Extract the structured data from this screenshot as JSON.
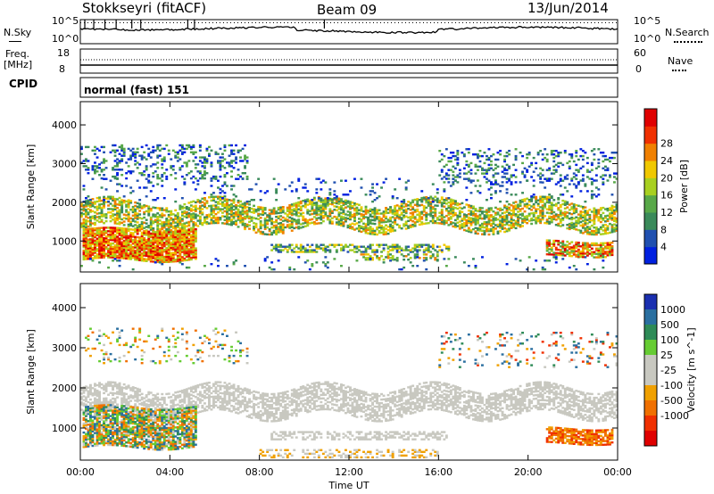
{
  "header": {
    "station": "Stokkseyri (fitACF)",
    "beam": "Beam 09",
    "date": "13/Jun/2014"
  },
  "top_panels": {
    "nsky_label": "N.Sky",
    "nsearch_label": "N.Search",
    "nsky_ticks": [
      "10^5",
      "10^0"
    ],
    "nsearch_ticks": [
      "10^5",
      "10^0"
    ],
    "freq_label": "Freq.",
    "freq_unit": "[MHz]",
    "freq_ticks": [
      "18",
      "8"
    ],
    "nave_label": "Nave",
    "nave_ticks": [
      "60",
      "0"
    ],
    "cpid_label": "CPID",
    "cpid_value": "normal (fast) 151"
  },
  "colors": {
    "power_scale": [
      "#0020e0",
      "#2050b0",
      "#3a8a5a",
      "#58a848",
      "#a8d020",
      "#f0c800",
      "#f08000",
      "#f03000",
      "#e00000"
    ],
    "velocity_scale": [
      "#1a2fb0",
      "#2a6fa0",
      "#2e8b57",
      "#66cc33",
      "#c8c8c0",
      "#c8c8c0",
      "#f0a000",
      "#f07000",
      "#f03000",
      "#e00000"
    ]
  },
  "chart_data": [
    {
      "type": "heatmap",
      "panel": "power",
      "ylabel": "Slant Range [km]",
      "yticks": [
        "1000",
        "2000",
        "3000",
        "4000"
      ],
      "ylim": [
        200,
        4600
      ],
      "xlim": [
        "00:00",
        "24:00"
      ],
      "colorbar_label": "Power [dB]",
      "colorbar_ticks": [
        "4",
        "8",
        "12",
        "16",
        "20",
        "24",
        "28"
      ],
      "bands": [
        {
          "name": "main echo band",
          "t": [
            0,
            24
          ],
          "range": [
            1300,
            2000
          ],
          "level": "12-20 dB"
        },
        {
          "name": "near-range strong echoes",
          "t": [
            0.1,
            5.2
          ],
          "range": [
            500,
            1300
          ],
          "level": "20-30 dB"
        },
        {
          "name": "upper scatter",
          "t": [
            0,
            7.5
          ],
          "range": [
            2600,
            3500
          ],
          "level": "4-8 dB"
        },
        {
          "name": "upper scatter late",
          "t": [
            16,
            24
          ],
          "range": [
            2500,
            3400
          ],
          "level": "4-8 dB"
        },
        {
          "name": "mid-range layer",
          "t": [
            8.5,
            16.5
          ],
          "range": [
            700,
            900
          ],
          "level": "8-16 dB"
        },
        {
          "name": "late near-range echoes",
          "t": [
            20.8,
            23.8
          ],
          "range": [
            600,
            1000
          ],
          "level": "16-28 dB"
        }
      ]
    },
    {
      "type": "heatmap",
      "panel": "velocity",
      "ylabel": "Slant Range [km]",
      "yticks": [
        "1000",
        "2000",
        "3000",
        "4000"
      ],
      "ylim": [
        200,
        4600
      ],
      "xlim": [
        "00:00",
        "24:00"
      ],
      "xlabel": "Time UT",
      "xticks": [
        "00:00",
        "04:00",
        "08:00",
        "12:00",
        "16:00",
        "20:00",
        "00:00"
      ],
      "colorbar_label": "Velocity [m s^-1]",
      "colorbar_ticks": [
        "1000",
        "500",
        "100",
        "25",
        "-25",
        "-100",
        "-500",
        "-1000"
      ],
      "bands": [
        {
          "name": "ground scatter band",
          "t": [
            0,
            24
          ],
          "range": [
            1300,
            2000
          ],
          "level": "-25 to 25 m/s"
        },
        {
          "name": "near-range flow",
          "t": [
            0.1,
            5.2
          ],
          "range": [
            500,
            1500
          ],
          "level": "mixed 100 to -500 m/s"
        },
        {
          "name": "late near-range flow",
          "t": [
            20.8,
            23.8
          ],
          "range": [
            600,
            1000
          ],
          "level": "-100 to -500 m/s"
        }
      ]
    }
  ]
}
